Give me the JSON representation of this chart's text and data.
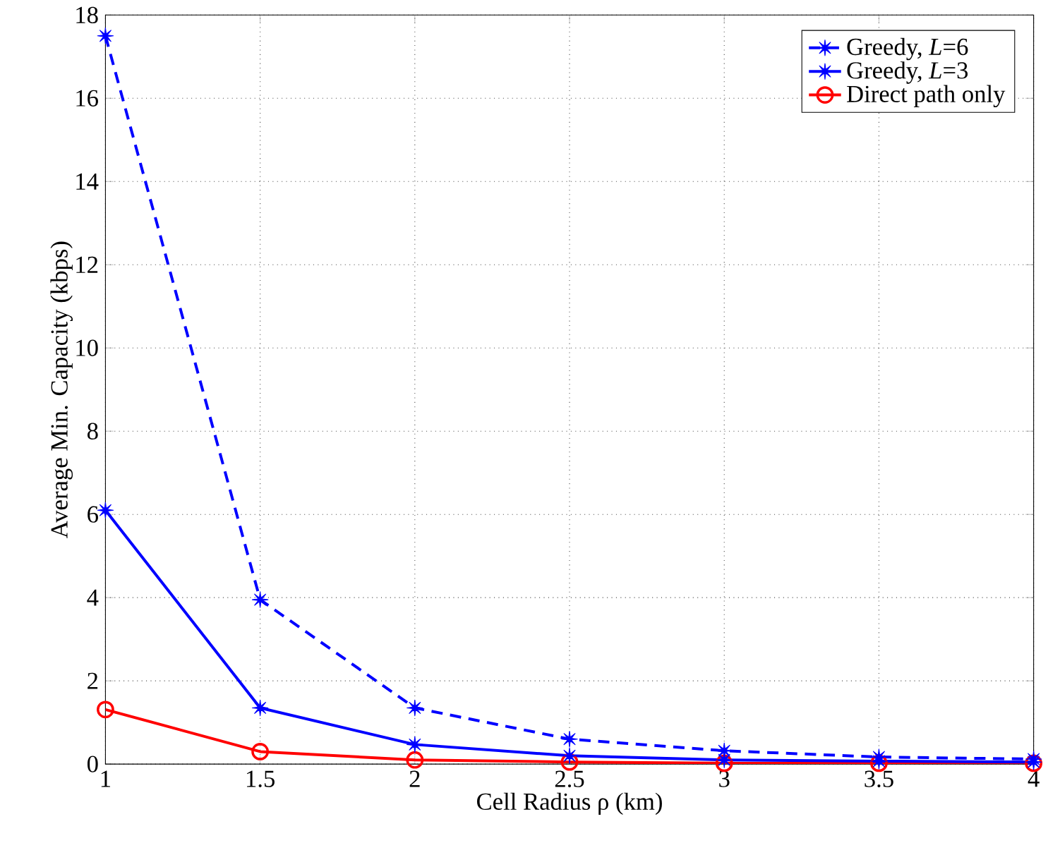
{
  "chart_data": {
    "type": "line",
    "xlabel": "Cell Radius ρ (km)",
    "ylabel": "Average Min. Capacity (kbps)",
    "x": [
      1,
      1.5,
      2,
      2.5,
      3,
      3.5,
      4
    ],
    "series": [
      {
        "name": "Greedy, *L*=6",
        "color": "#0000ff",
        "marker": "star",
        "line_style": "dashed",
        "values": [
          17.5,
          3.95,
          1.35,
          0.6,
          0.32,
          0.17,
          0.12
        ]
      },
      {
        "name": "Greedy, *L*=3",
        "color": "#0000ff",
        "marker": "star",
        "line_style": "solid",
        "values": [
          6.1,
          1.35,
          0.47,
          0.2,
          0.1,
          0.07,
          0.05
        ]
      },
      {
        "name": "Direct path only",
        "color": "#ff0000",
        "marker": "circle",
        "line_style": "solid",
        "values": [
          1.31,
          0.3,
          0.1,
          0.05,
          0.02,
          0.02,
          0.02
        ]
      }
    ],
    "xlim": [
      1,
      4
    ],
    "ylim": [
      0,
      18
    ],
    "xticks": [
      1,
      1.5,
      2,
      2.5,
      3,
      3.5,
      4
    ],
    "yticks": [
      0,
      2,
      4,
      6,
      8,
      10,
      12,
      14,
      16,
      18
    ],
    "grid": true,
    "legend": "top right"
  }
}
